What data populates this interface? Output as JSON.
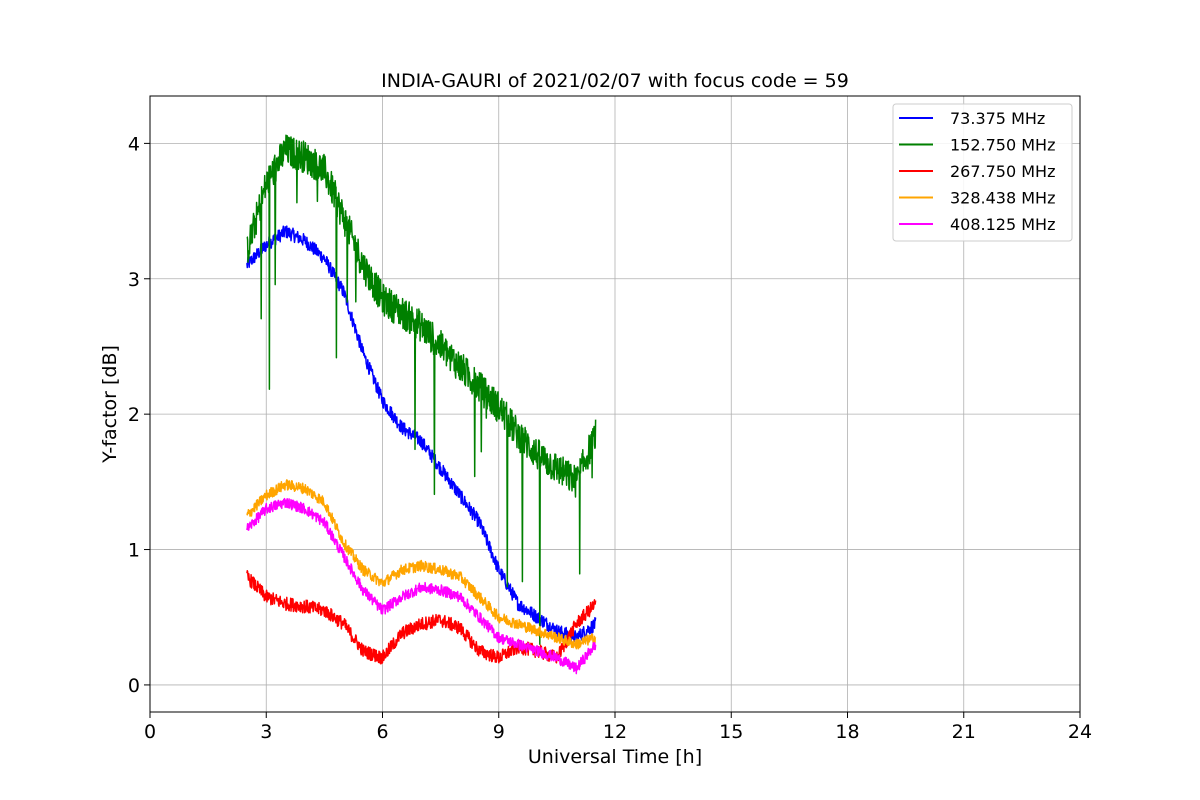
{
  "chart_data": {
    "type": "line",
    "title": "INDIA-GAURI of 2021/02/07 with focus code = 59",
    "xlabel": "Universal Time [h]",
    "ylabel": "Y-factor [dB]",
    "xlim": [
      0,
      24
    ],
    "ylim": [
      -0.2,
      4.35
    ],
    "xticks": [
      0,
      3,
      6,
      9,
      12,
      15,
      18,
      21,
      24
    ],
    "yticks": [
      0,
      1,
      2,
      3,
      4
    ],
    "grid": true,
    "legend_position": "top-right",
    "series": [
      {
        "name": " 73.375 MHz",
        "color": "#0000ff",
        "x": [
          2.5,
          3.0,
          3.5,
          4.0,
          4.5,
          5.0,
          5.5,
          6.0,
          6.5,
          7.0,
          7.5,
          8.0,
          8.5,
          9.0,
          9.5,
          10.0,
          10.5,
          11.0,
          11.5
        ],
        "y": [
          3.1,
          3.25,
          3.35,
          3.28,
          3.15,
          2.9,
          2.45,
          2.1,
          1.9,
          1.8,
          1.6,
          1.4,
          1.2,
          0.85,
          0.6,
          0.5,
          0.4,
          0.35,
          0.45
        ],
        "noise": 0.05
      },
      {
        "name": "152.750 MHz",
        "color": "#008000",
        "x": [
          2.5,
          3.0,
          3.5,
          4.0,
          4.5,
          5.0,
          5.5,
          6.0,
          6.5,
          7.0,
          7.5,
          8.0,
          8.5,
          9.0,
          9.5,
          10.0,
          10.5,
          11.0,
          11.5
        ],
        "y": [
          3.2,
          3.7,
          3.95,
          3.9,
          3.8,
          3.45,
          3.1,
          2.85,
          2.75,
          2.65,
          2.5,
          2.35,
          2.2,
          2.05,
          1.85,
          1.7,
          1.6,
          1.5,
          1.85
        ],
        "noise": 0.12
      },
      {
        "name": "267.750 MHz",
        "color": "#ff0000",
        "x": [
          2.5,
          3.0,
          3.5,
          4.0,
          4.5,
          5.0,
          5.5,
          6.0,
          6.5,
          7.0,
          7.5,
          8.0,
          8.5,
          9.0,
          9.5,
          10.0,
          10.5,
          11.0,
          11.5
        ],
        "y": [
          0.8,
          0.65,
          0.6,
          0.58,
          0.55,
          0.45,
          0.25,
          0.2,
          0.38,
          0.45,
          0.48,
          0.42,
          0.25,
          0.2,
          0.28,
          0.25,
          0.2,
          0.45,
          0.6
        ],
        "noise": 0.05
      },
      {
        "name": "328.438 MHz",
        "color": "#ffa500",
        "x": [
          2.5,
          3.0,
          3.5,
          4.0,
          4.5,
          5.0,
          5.5,
          6.0,
          6.5,
          7.0,
          7.5,
          8.0,
          8.5,
          9.0,
          9.5,
          10.0,
          10.5,
          11.0,
          11.5
        ],
        "y": [
          1.25,
          1.4,
          1.48,
          1.45,
          1.35,
          1.05,
          0.85,
          0.75,
          0.85,
          0.88,
          0.85,
          0.8,
          0.65,
          0.5,
          0.45,
          0.4,
          0.35,
          0.3,
          0.35
        ],
        "noise": 0.04
      },
      {
        "name": "408.125 MHz",
        "color": "#ff00ff",
        "x": [
          2.5,
          3.0,
          3.5,
          4.0,
          4.5,
          5.0,
          5.5,
          6.0,
          6.5,
          7.0,
          7.5,
          8.0,
          8.5,
          9.0,
          9.5,
          10.0,
          10.5,
          11.0,
          11.5
        ],
        "y": [
          1.15,
          1.3,
          1.35,
          1.3,
          1.2,
          0.95,
          0.7,
          0.55,
          0.65,
          0.72,
          0.7,
          0.65,
          0.5,
          0.35,
          0.3,
          0.25,
          0.2,
          0.12,
          0.3
        ],
        "noise": 0.04
      }
    ]
  }
}
